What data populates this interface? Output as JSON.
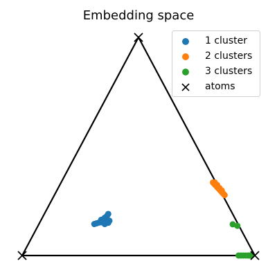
{
  "chart_data": {
    "type": "scatter",
    "title": "Embedding space",
    "xlabel": "",
    "ylabel": "",
    "grid": false,
    "legend_position": "top-right",
    "atoms": {
      "name": "atoms",
      "color": "#000000",
      "marker": "x",
      "points": [
        [
          0.0,
          0.0
        ],
        [
          1.0,
          0.0
        ],
        [
          0.5,
          0.866
        ]
      ]
    },
    "series": [
      {
        "name": "1 cluster",
        "color": "#1f77b4",
        "points": [
          [
            0.31,
            0.125
          ],
          [
            0.32,
            0.128
          ],
          [
            0.33,
            0.131
          ],
          [
            0.34,
            0.132
          ],
          [
            0.345,
            0.14
          ],
          [
            0.35,
            0.145
          ],
          [
            0.355,
            0.15
          ],
          [
            0.36,
            0.152
          ],
          [
            0.365,
            0.158
          ],
          [
            0.37,
            0.165
          ],
          [
            0.375,
            0.138
          ],
          [
            0.37,
            0.13
          ],
          [
            0.355,
            0.125
          ],
          [
            0.36,
            0.135
          ],
          [
            0.35,
            0.132
          ],
          [
            0.34,
            0.142
          ]
        ]
      },
      {
        "name": "2 clusters",
        "color": "#ff7f0e",
        "points": [
          [
            0.82,
            0.29
          ],
          [
            0.825,
            0.285
          ],
          [
            0.83,
            0.28
          ],
          [
            0.835,
            0.275
          ],
          [
            0.84,
            0.27
          ],
          [
            0.845,
            0.265
          ],
          [
            0.85,
            0.26
          ],
          [
            0.855,
            0.255
          ],
          [
            0.86,
            0.25
          ],
          [
            0.865,
            0.245
          ],
          [
            0.87,
            0.24
          ],
          [
            0.828,
            0.29
          ],
          [
            0.838,
            0.28
          ],
          [
            0.848,
            0.268
          ],
          [
            0.858,
            0.258
          ]
        ]
      },
      {
        "name": "3 clusters",
        "color": "#2ca02c",
        "points": [
          [
            0.905,
            0.124
          ],
          [
            0.925,
            0.118
          ],
          [
            0.93,
            0.0
          ],
          [
            0.94,
            0.0
          ],
          [
            0.95,
            0.0
          ],
          [
            0.96,
            0.0
          ],
          [
            0.97,
            0.0
          ],
          [
            0.975,
            0.0
          ],
          [
            0.98,
            0.0
          ],
          [
            0.985,
            0.0
          ]
        ]
      }
    ]
  }
}
